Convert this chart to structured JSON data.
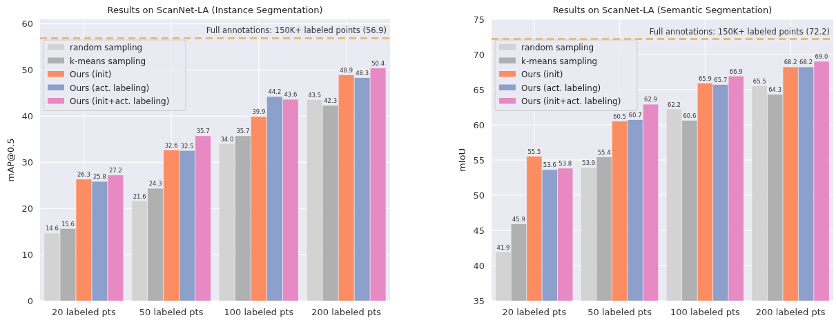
{
  "chart_data": [
    {
      "type": "bar",
      "title": "Results on ScanNet-LA (Instance Segmentation)",
      "ylabel": "mAP@0.5",
      "categories": [
        "20 labeled pts",
        "50 labeled pts",
        "100 labeled pts",
        "200 labeled pts"
      ],
      "series": [
        {
          "name": "random sampling",
          "color": "#d3d3d3",
          "values": [
            14.6,
            21.6,
            34.0,
            43.5
          ],
          "value_labels": [
            "14.6",
            "21.6",
            "34.0",
            "43.5"
          ]
        },
        {
          "name": "k-means sampling",
          "color": "#b0b0b0",
          "values": [
            15.6,
            24.3,
            35.7,
            42.3
          ],
          "value_labels": [
            "15.6",
            "24.3",
            "35.7",
            "42.3"
          ]
        },
        {
          "name": "Ours (init)",
          "color": "#fc8d62",
          "values": [
            26.3,
            32.6,
            39.9,
            48.9
          ],
          "value_labels": [
            "26.3",
            "32.6",
            "39.9",
            "48.9"
          ]
        },
        {
          "name": "Ours (act. labeling)",
          "color": "#8da0cb",
          "values": [
            25.8,
            32.5,
            44.2,
            48.3
          ],
          "value_labels": [
            "25.8",
            "32.5",
            "44.2",
            "48.3"
          ]
        },
        {
          "name": "Ours (init+act. labeling)",
          "color": "#e78ac3",
          "values": [
            27.2,
            35.7,
            43.6,
            50.4
          ],
          "value_labels": [
            "27.2",
            "35.7",
            "43.6",
            "50.4"
          ]
        }
      ],
      "ylim": [
        0,
        61
      ],
      "yticks": [
        0,
        10,
        20,
        30,
        40,
        50,
        60
      ],
      "grid": true,
      "legend": "top left",
      "ref_lines": [
        {
          "axis": "y",
          "value": 56.9,
          "label": "Full annotations: 150K+ labeled points (56.9)",
          "color": "#e6bb78",
          "line_style": "dashed"
        }
      ]
    },
    {
      "type": "bar",
      "title": "Results on ScanNet-LA (Semantic Segmentation)",
      "ylabel": "mIoU",
      "categories": [
        "20 labeled pts",
        "50 labeled pts",
        "100 labeled pts",
        "200 labeled pts"
      ],
      "series": [
        {
          "name": "random sampling",
          "color": "#d3d3d3",
          "values": [
            41.9,
            53.9,
            62.2,
            65.5
          ],
          "value_labels": [
            "41.9",
            "53.9",
            "62.2",
            "65.5"
          ]
        },
        {
          "name": "k-means sampling",
          "color": "#b0b0b0",
          "values": [
            45.9,
            55.4,
            60.6,
            64.3
          ],
          "value_labels": [
            "45.9",
            "55.4",
            "60.6",
            "64.3"
          ]
        },
        {
          "name": "Ours (init)",
          "color": "#fc8d62",
          "values": [
            55.5,
            60.5,
            65.9,
            68.2
          ],
          "value_labels": [
            "55.5",
            "60.5",
            "65.9",
            "68.2"
          ]
        },
        {
          "name": "Ours (act. labeling)",
          "color": "#8da0cb",
          "values": [
            53.6,
            60.7,
            65.7,
            68.2
          ],
          "value_labels": [
            "53.6",
            "60.7",
            "65.7",
            "68.2"
          ]
        },
        {
          "name": "Ours (init+act. labeling)",
          "color": "#e78ac3",
          "values": [
            53.8,
            62.9,
            66.9,
            69.0
          ],
          "value_labels": [
            "53.8",
            "62.9",
            "66.9",
            "69.0"
          ]
        }
      ],
      "ylim": [
        35,
        75
      ],
      "yticks": [
        35,
        40,
        45,
        50,
        55,
        60,
        65,
        70,
        75
      ],
      "grid": true,
      "legend": "top left",
      "ref_lines": [
        {
          "axis": "y",
          "value": 72.2,
          "label": "Full annotations: 150K+ labeled points (72.2)",
          "color": "#e6bb78",
          "line_style": "dashed"
        }
      ]
    }
  ]
}
